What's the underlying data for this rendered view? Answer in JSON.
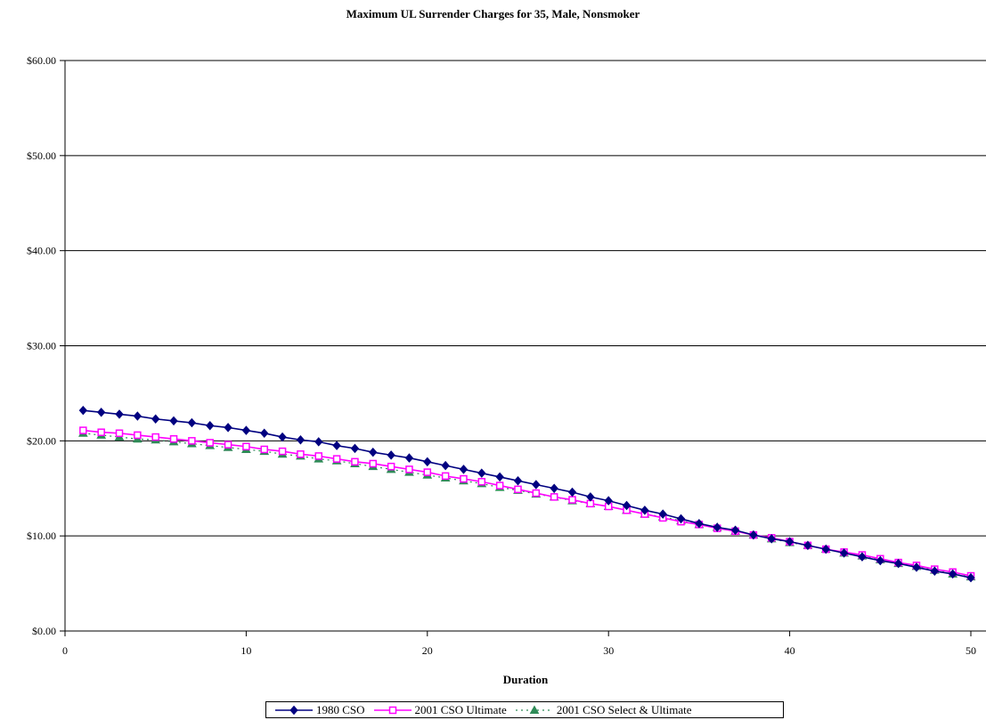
{
  "chart_data": {
    "type": "line",
    "title": "Maximum UL Surrender Charges for 35, Male, Nonsmoker",
    "xlabel": "Duration",
    "ylabel": "",
    "xlim": [
      0,
      50
    ],
    "ylim": [
      0,
      60
    ],
    "x_ticks": [
      0,
      10,
      20,
      30,
      40,
      50
    ],
    "y_ticks": [
      {
        "value": 0,
        "label": "$0.00"
      },
      {
        "value": 10,
        "label": "$10.00"
      },
      {
        "value": 20,
        "label": "$20.00"
      },
      {
        "value": 30,
        "label": "$30.00"
      },
      {
        "value": 40,
        "label": "$40.00"
      },
      {
        "value": 50,
        "label": "$50.00"
      },
      {
        "value": 60,
        "label": "$60.00"
      }
    ],
    "grid": "horizontal",
    "legend_position": "bottom",
    "x": [
      1,
      2,
      3,
      4,
      5,
      6,
      7,
      8,
      9,
      10,
      11,
      12,
      13,
      14,
      15,
      16,
      17,
      18,
      19,
      20,
      21,
      22,
      23,
      24,
      25,
      26,
      27,
      28,
      29,
      30,
      31,
      32,
      33,
      34,
      35,
      36,
      37,
      38,
      39,
      40,
      41,
      42,
      43,
      44,
      45,
      46,
      47,
      48,
      49,
      50
    ],
    "series": [
      {
        "name": "1980 CSO",
        "color": "#000080",
        "marker": "diamond",
        "dash": "solid",
        "values": [
          23.2,
          23.0,
          22.8,
          22.6,
          22.3,
          22.1,
          21.9,
          21.6,
          21.4,
          21.1,
          20.8,
          20.4,
          20.1,
          19.9,
          19.5,
          19.2,
          18.8,
          18.5,
          18.2,
          17.8,
          17.4,
          17.0,
          16.6,
          16.2,
          15.8,
          15.4,
          15.0,
          14.6,
          14.1,
          13.7,
          13.2,
          12.7,
          12.3,
          11.8,
          11.3,
          10.9,
          10.6,
          10.1,
          9.7,
          9.4,
          9.0,
          8.6,
          8.2,
          7.8,
          7.4,
          7.1,
          6.7,
          6.3,
          6.0,
          5.6
        ]
      },
      {
        "name": "2001 CSO Ultimate",
        "color": "#ff00ff",
        "marker": "square",
        "dash": "solid",
        "values": [
          21.1,
          20.9,
          20.8,
          20.6,
          20.4,
          20.2,
          20.0,
          19.8,
          19.6,
          19.4,
          19.1,
          18.9,
          18.6,
          18.4,
          18.1,
          17.8,
          17.6,
          17.3,
          17.0,
          16.7,
          16.3,
          16.0,
          15.7,
          15.3,
          14.9,
          14.5,
          14.1,
          13.8,
          13.4,
          13.1,
          12.7,
          12.3,
          11.9,
          11.5,
          11.2,
          10.8,
          10.5,
          10.1,
          9.8,
          9.4,
          9.0,
          8.6,
          8.3,
          8.0,
          7.6,
          7.2,
          6.9,
          6.5,
          6.2,
          5.8
        ]
      },
      {
        "name": "2001 CSO Select & Ultimate",
        "color": "#2e8b57",
        "marker": "triangle",
        "dash": "dotted",
        "values": [
          20.8,
          20.6,
          20.4,
          20.2,
          20.1,
          19.9,
          19.7,
          19.5,
          19.3,
          19.1,
          18.9,
          18.6,
          18.4,
          18.1,
          17.9,
          17.6,
          17.3,
          17.0,
          16.7,
          16.4,
          16.1,
          15.8,
          15.5,
          15.1,
          14.8,
          14.4,
          14.1,
          13.7,
          13.4,
          13.1,
          12.7,
          12.3,
          12.0,
          11.6,
          11.2,
          10.9,
          10.5,
          10.1,
          9.7,
          9.3,
          9.0,
          8.6,
          8.2,
          7.9,
          7.5,
          7.1,
          6.8,
          6.4,
          6.0,
          5.7
        ]
      }
    ]
  }
}
